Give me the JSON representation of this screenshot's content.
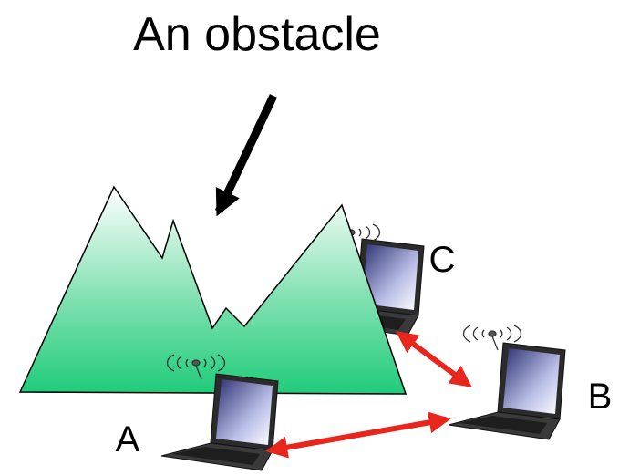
{
  "title": "An obstacle",
  "nodes": [
    {
      "label": "A"
    },
    {
      "label": "B"
    },
    {
      "label": "C"
    }
  ]
}
